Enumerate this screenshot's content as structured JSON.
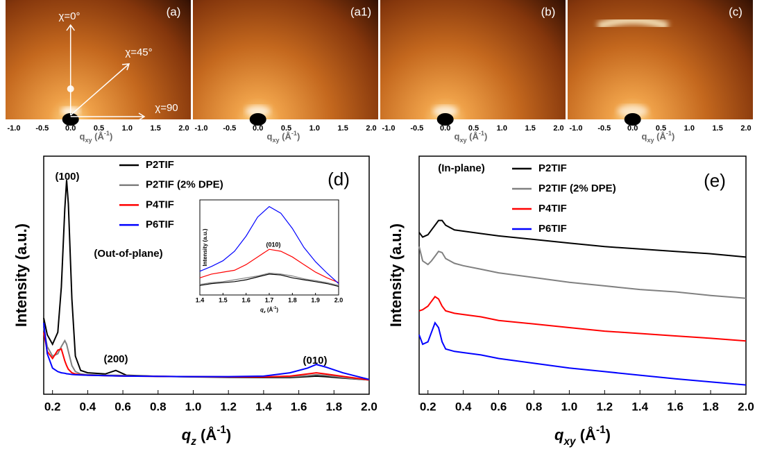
{
  "chart_data": [
    {
      "type": "image",
      "label": "(a)",
      "xlim": [
        -1,
        2
      ],
      "xticks": [
        {
          "value": -1,
          "label": "-1.0"
        },
        -0.5,
        {
          "value": 0,
          "label": "0.0"
        },
        0.5,
        {
          "value": 1,
          "label": "1.0"
        },
        1.5,
        {
          "value": 2,
          "label": "2.0"
        }
      ],
      "xlabel": [
        "q",
        "xy",
        " (Å",
        "-1",
        ")"
      ],
      "annotations": [
        "χ=0°",
        "χ=45°",
        "χ=90"
      ]
    },
    {
      "type": "image",
      "label": "(a1)",
      "xlim": [
        -1,
        2
      ],
      "xticks": [
        {
          "value": -1,
          "label": "-1.0"
        },
        -0.5,
        {
          "value": 0,
          "label": "0.0"
        },
        0.5,
        {
          "value": 1,
          "label": "1.0"
        },
        1.5,
        {
          "value": 2,
          "label": "2.0"
        }
      ],
      "xlabel": [
        "q",
        "xy",
        " (Å",
        "-1",
        ")"
      ]
    },
    {
      "type": "image",
      "label": "(b)",
      "xlim": [
        -1,
        2
      ],
      "xticks": [
        {
          "value": -1,
          "label": "-1.0"
        },
        -0.5,
        {
          "value": 0,
          "label": "0.0"
        },
        0.5,
        {
          "value": 1,
          "label": "1.0"
        },
        1.5,
        {
          "value": 2,
          "label": "2.0"
        }
      ],
      "xlabel": [
        "q",
        "xy",
        " (Å",
        "-1",
        ")"
      ]
    },
    {
      "type": "image",
      "label": "(c)",
      "xlim": [
        -1,
        2
      ],
      "xticks": [
        {
          "value": -1,
          "label": "-1.0"
        },
        -0.5,
        {
          "value": 0,
          "label": "0.0"
        },
        0.5,
        {
          "value": 1,
          "label": "1.0"
        },
        1.5,
        {
          "value": 2,
          "label": "2.0"
        }
      ],
      "xlabel": [
        "q",
        "xy",
        " (Å",
        "-1",
        ")"
      ]
    },
    {
      "type": "line",
      "label": "(d)",
      "ylabel": "Intensity (a.u.)",
      "xlabel": [
        "q",
        "z",
        " (Å",
        "-1",
        ")"
      ],
      "annotations": [
        "(100)",
        "(200)",
        "(010)",
        "(Out-of-plane)"
      ],
      "xlim": [
        0.15,
        2.0
      ],
      "ylim": [
        0,
        100
      ],
      "legend": true,
      "xticks": [
        0.2,
        0.4,
        0.6,
        0.8,
        {
          "value": 1,
          "label": "1.0"
        },
        1.2,
        1.4,
        1.6,
        1.8,
        {
          "value": 2,
          "label": "2.0"
        }
      ],
      "x": [
        0.15,
        0.17,
        0.2,
        0.23,
        0.25,
        0.27,
        0.28,
        0.29,
        0.31,
        0.33,
        0.36,
        0.4,
        0.5,
        0.56,
        0.62,
        0.8,
        1.0,
        1.2,
        1.4,
        1.55,
        1.65,
        1.7,
        1.75,
        1.85,
        2.0
      ],
      "series": [
        {
          "name": "P2TIF",
          "color": "#000000",
          "values": [
            32,
            25,
            21,
            26,
            45,
            78,
            90,
            80,
            40,
            16,
            10,
            9,
            8.5,
            10,
            8,
            7.5,
            7.3,
            7.1,
            7,
            7,
            7.4,
            7.6,
            7.4,
            6.8,
            6
          ]
        },
        {
          "name": "P2TIF (2% DPE)",
          "color": "#808080",
          "values": [
            28,
            20,
            16,
            17,
            20,
            22.5,
            21,
            18,
            12,
            9.5,
            8.5,
            8.2,
            8,
            8,
            7.8,
            7.5,
            7.4,
            7.3,
            7.2,
            7.3,
            7.8,
            8.2,
            7.9,
            7,
            6
          ]
        },
        {
          "name": "P4TIF",
          "color": "#ff0000",
          "values": [
            26,
            18,
            15,
            18.5,
            19,
            14,
            12,
            10.5,
            9,
            8.5,
            8.2,
            8,
            7.8,
            7.7,
            7.6,
            7.5,
            7.4,
            7.3,
            7.3,
            7.6,
            8.5,
            9,
            8.5,
            7.5,
            6
          ]
        },
        {
          "name": "P6TIF",
          "color": "#0000ff",
          "values": [
            30,
            17,
            11,
            9.5,
            9,
            8.8,
            8.6,
            8.5,
            8.3,
            8.2,
            8.1,
            8,
            7.8,
            7.7,
            7.6,
            7.5,
            7.4,
            7.4,
            7.6,
            9,
            11,
            12.5,
            11.5,
            9,
            6.2
          ]
        }
      ]
    },
    {
      "type": "line",
      "label": "(010)",
      "ylabel": "Intensity (a.u.)",
      "xlabel": [
        "q",
        "z",
        " (Å",
        "-1",
        ")"
      ],
      "xlim": [
        1.4,
        2.0
      ],
      "ylim": [
        0,
        10
      ],
      "xticks": [
        1.4,
        1.5,
        1.6,
        1.7,
        1.8,
        1.9,
        {
          "value": 2,
          "label": "2.0"
        }
      ],
      "x": [
        1.4,
        1.45,
        1.5,
        1.55,
        1.6,
        1.65,
        1.7,
        1.75,
        1.8,
        1.85,
        1.9,
        1.95,
        2.0
      ],
      "series": [
        {
          "color": "#000000",
          "values": [
            1,
            1.2,
            1.3,
            1.4,
            1.6,
            1.9,
            2.2,
            2.1,
            1.8,
            1.6,
            1.4,
            1.2,
            0.9
          ]
        },
        {
          "color": "#808080",
          "values": [
            1.1,
            1.3,
            1.4,
            1.6,
            1.8,
            2.0,
            2.3,
            2.2,
            2.0,
            1.7,
            1.5,
            1.3,
            1.0
          ]
        },
        {
          "color": "#ff0000",
          "values": [
            1.8,
            2.2,
            2.4,
            2.6,
            3.2,
            4,
            4.8,
            4.6,
            4,
            3.2,
            2.4,
            1.8,
            1.3
          ]
        },
        {
          "color": "#0000ff",
          "values": [
            2.5,
            3,
            3.6,
            4.6,
            6.2,
            8.2,
            9.3,
            8.6,
            7,
            5,
            3.5,
            2.3,
            1.2
          ]
        }
      ]
    },
    {
      "type": "line",
      "label": "(e)",
      "ylabel": "Intensity (a.u.)",
      "xlabel": [
        "q",
        "xy",
        " (Å",
        "-1",
        ")"
      ],
      "annotations": [
        "(In-plane)"
      ],
      "xlim": [
        0.15,
        2.0
      ],
      "ylim": [
        0,
        100
      ],
      "legend": true,
      "xticks": [
        0.2,
        0.4,
        0.6,
        0.8,
        {
          "value": 1,
          "label": "1.0"
        },
        1.2,
        1.4,
        1.6,
        1.8,
        {
          "value": 2,
          "label": "2.0"
        }
      ],
      "x": [
        0.15,
        0.17,
        0.2,
        0.22,
        0.24,
        0.26,
        0.28,
        0.3,
        0.35,
        0.4,
        0.5,
        0.6,
        0.8,
        1.0,
        1.2,
        1.4,
        1.6,
        1.8,
        2.0
      ],
      "series": [
        {
          "name": "P2TIF",
          "color": "#000000",
          "values": [
            68,
            66,
            67,
            69,
            71,
            73,
            73,
            71,
            69,
            68.5,
            67.5,
            66.5,
            65,
            63.5,
            62,
            61,
            60,
            59,
            57.6
          ]
        },
        {
          "name": "P2TIF (2% DPE)",
          "color": "#808080",
          "values": [
            62,
            56,
            54.5,
            56,
            58,
            60,
            59.5,
            57,
            55,
            54,
            52.5,
            51,
            49,
            47,
            45.5,
            44,
            43,
            41.5,
            40.3
          ]
        },
        {
          "name": "P4TIF",
          "color": "#ff0000",
          "values": [
            35,
            35.5,
            37,
            39,
            41,
            40,
            37,
            35,
            34,
            33.5,
            32.5,
            31,
            29.5,
            28,
            26.5,
            25.5,
            24.5,
            23.5,
            22.4
          ]
        },
        {
          "name": "P6TIF",
          "color": "#0000ff",
          "values": [
            25,
            21,
            22,
            26,
            30,
            28,
            22,
            19,
            18,
            17.5,
            16.5,
            15,
            13,
            11,
            9.5,
            8,
            6.5,
            5.2,
            3.9
          ]
        }
      ]
    }
  ]
}
